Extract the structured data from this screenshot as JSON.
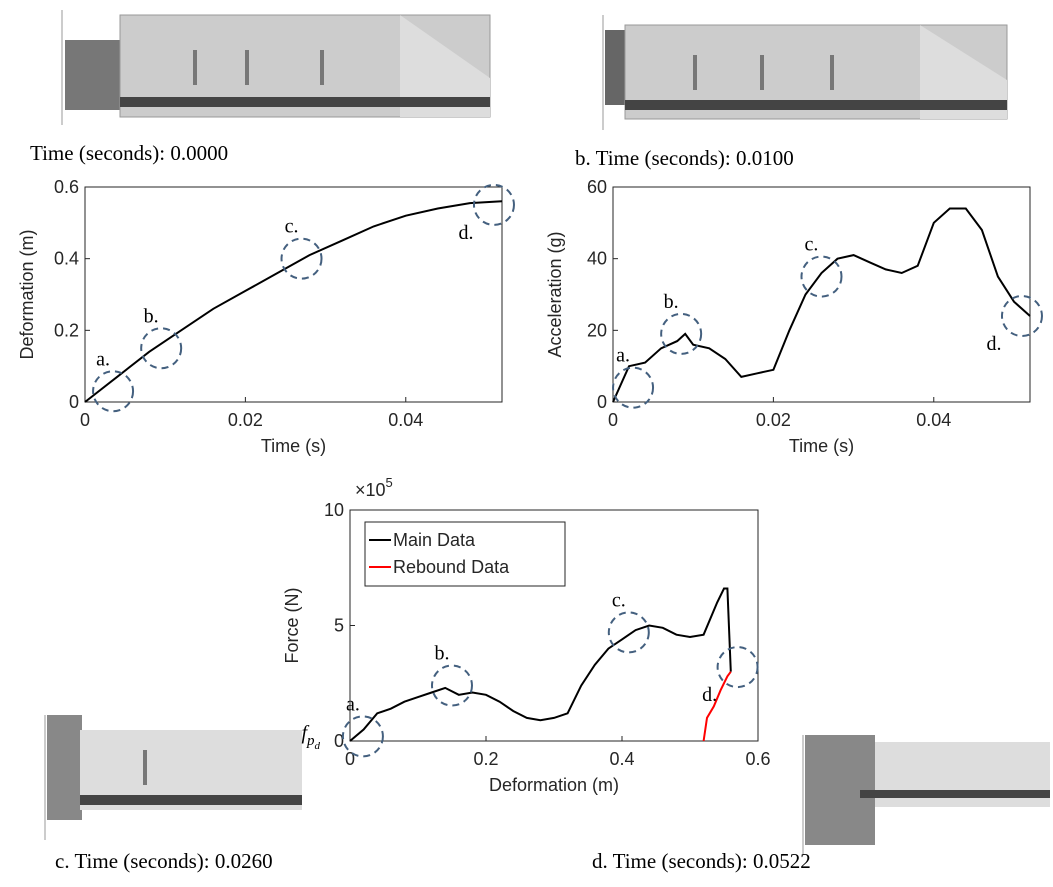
{
  "captions": [
    "Time (seconds): 0.0000",
    "b. Time (seconds): 0.0100",
    "c. Time (seconds): 0.0260",
    "d. Time (seconds): 0.0522"
  ],
  "chart_data": [
    {
      "type": "line",
      "xlabel": "Time (s)",
      "ylabel": "Deformation (m)",
      "x": [
        0,
        0.004,
        0.008,
        0.012,
        0.016,
        0.02,
        0.024,
        0.028,
        0.032,
        0.036,
        0.04,
        0.044,
        0.048,
        0.052
      ],
      "series": [
        {
          "color": "#000000",
          "values": [
            0,
            0.07,
            0.14,
            0.2,
            0.26,
            0.31,
            0.36,
            0.41,
            0.45,
            0.49,
            0.52,
            0.54,
            0.555,
            0.56
          ]
        }
      ],
      "xlim": [
        0,
        0.052
      ],
      "ylim": [
        0,
        0.6
      ],
      "xticks": [
        0,
        0.02,
        0.04
      ],
      "yticks": [
        0,
        0.2,
        0.4,
        0.6
      ],
      "grid": false,
      "annotations": [
        {
          "text": "a.",
          "x": 0.0035,
          "y": 0.03
        },
        {
          "text": "b.",
          "x": 0.0095,
          "y": 0.15
        },
        {
          "text": "c.",
          "x": 0.027,
          "y": 0.4
        },
        {
          "text": "d.",
          "x": 0.051,
          "y": 0.55
        }
      ]
    },
    {
      "type": "line",
      "xlabel": "Time (s)",
      "ylabel": "Acceleration (g)",
      "x": [
        0,
        0.001,
        0.002,
        0.004,
        0.006,
        0.008,
        0.009,
        0.01,
        0.012,
        0.014,
        0.016,
        0.018,
        0.02,
        0.022,
        0.024,
        0.026,
        0.028,
        0.03,
        0.032,
        0.034,
        0.036,
        0.038,
        0.04,
        0.042,
        0.044,
        0.046,
        0.048,
        0.05,
        0.052
      ],
      "series": [
        {
          "color": "#000000",
          "values": [
            0,
            5,
            10,
            11,
            15,
            17,
            19,
            16,
            15,
            12,
            7,
            8,
            9,
            20,
            30,
            36,
            40,
            41,
            39,
            37,
            36,
            38,
            50,
            54,
            54,
            48,
            35,
            28,
            24
          ]
        }
      ],
      "xlim": [
        0,
        0.052
      ],
      "ylim": [
        0,
        60
      ],
      "xticks": [
        0,
        0.02,
        0.04
      ],
      "yticks": [
        0,
        20,
        40,
        60
      ],
      "grid": false,
      "annotations": [
        {
          "text": "a.",
          "x": 0.0025,
          "y": 4
        },
        {
          "text": "b.",
          "x": 0.0085,
          "y": 19
        },
        {
          "text": "c.",
          "x": 0.026,
          "y": 35
        },
        {
          "text": "d.",
          "x": 0.051,
          "y": 24
        }
      ]
    },
    {
      "type": "line",
      "xlabel": "Deformation (m)",
      "ylabel": "Force (N)",
      "y_exponent": {
        "base": "×10",
        "power": "5"
      },
      "y_marker": {
        "base": "f",
        "sub": "p",
        "subsub": "d"
      },
      "series": [
        {
          "name": "Main Data",
          "color": "#000000",
          "x": [
            0,
            0.02,
            0.04,
            0.06,
            0.08,
            0.1,
            0.12,
            0.14,
            0.16,
            0.18,
            0.2,
            0.22,
            0.24,
            0.26,
            0.28,
            0.3,
            0.32,
            0.34,
            0.36,
            0.38,
            0.4,
            0.42,
            0.44,
            0.46,
            0.48,
            0.5,
            0.52,
            0.54,
            0.55,
            0.555,
            0.56
          ],
          "values": [
            0,
            0.5,
            1.2,
            1.4,
            1.7,
            1.9,
            2.1,
            2.3,
            2.0,
            2.1,
            2.0,
            1.7,
            1.3,
            1.0,
            0.9,
            1.0,
            1.2,
            2.4,
            3.3,
            4.0,
            4.4,
            4.8,
            5.0,
            4.9,
            4.6,
            4.5,
            4.6,
            6.0,
            6.6,
            6.6,
            3.0
          ]
        },
        {
          "name": "Rebound Data",
          "color": "#ff0000",
          "x": [
            0.52,
            0.525,
            0.535,
            0.545,
            0.555,
            0.56
          ],
          "values": [
            0,
            1.0,
            1.5,
            2.2,
            2.8,
            3.0
          ]
        }
      ],
      "xlim": [
        0,
        0.6
      ],
      "ylim": [
        0,
        10
      ],
      "xticks": [
        0,
        0.2,
        0.4,
        0.6
      ],
      "yticks": [
        0,
        5,
        10
      ],
      "grid": false,
      "legend": "upper left",
      "annotations": [
        {
          "text": "a.",
          "x": 0.019,
          "y": 0.2
        },
        {
          "text": "b.",
          "x": 0.15,
          "y": 2.4
        },
        {
          "text": "c.",
          "x": 0.41,
          "y": 4.7
        },
        {
          "text": "d.",
          "x": 0.57,
          "y": 3.2
        }
      ]
    }
  ]
}
